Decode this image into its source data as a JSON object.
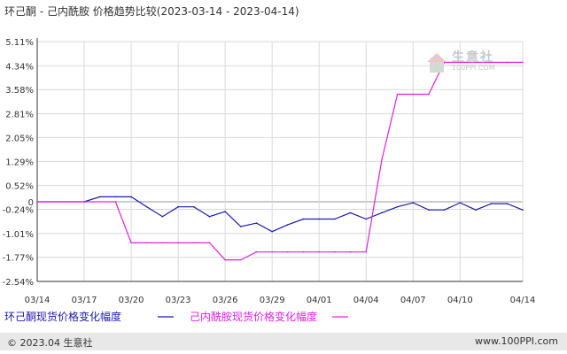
{
  "header": {
    "title": "环己酮 - 己内酰胺 价格趋势比较(2023-03-14 - 2023-04-14)"
  },
  "watermark": {
    "name": "生意社",
    "url": "100PPI.COM"
  },
  "footer": {
    "left": "© 2023.04 生意社",
    "right": "www.100PPI.com"
  },
  "colors": {
    "series1": "#1a1aaa",
    "series2": "#e020e0",
    "grid": "#d9d9d9",
    "axis": "#333333"
  },
  "chart_data": {
    "type": "line",
    "title": "环己酮 - 己内酰胺 价格趋势比较(2023-03-14 - 2023-04-14)",
    "xlabel": "",
    "ylabel": "",
    "ylim": [
      -2.54,
      5.11
    ],
    "yticks": [
      "5.11%",
      "4.34%",
      "3.58%",
      "2.81%",
      "2.05%",
      "1.29%",
      "0.52%",
      "0",
      "-0.24%",
      "-1.01%",
      "-1.77%",
      "-2.54%"
    ],
    "ytick_values": [
      5.11,
      4.34,
      3.58,
      2.81,
      2.05,
      1.29,
      0.52,
      0,
      -0.24,
      -1.01,
      -1.77,
      -2.54
    ],
    "xticks": [
      "03/14",
      "03/17",
      "03/20",
      "03/23",
      "03/26",
      "03/29",
      "04/01",
      "04/04",
      "04/07",
      "04/10",
      "04/14"
    ],
    "xtick_days": [
      0,
      3,
      6,
      9,
      12,
      15,
      18,
      21,
      24,
      27,
      31
    ],
    "grid": true,
    "series": [
      {
        "name": "环己酮现货价格变化幅度",
        "x": [
          0,
          3,
          4,
          5,
          6,
          7,
          8,
          9,
          10,
          11,
          12,
          13,
          14,
          15,
          16,
          17,
          18,
          19,
          20,
          21,
          22,
          23,
          24,
          25,
          26,
          27,
          28,
          29,
          30,
          31
        ],
        "y": [
          0,
          0,
          0.16,
          0.16,
          0.16,
          -0.16,
          -0.47,
          -0.16,
          -0.16,
          -0.47,
          -0.31,
          -0.79,
          -0.68,
          -0.95,
          -0.73,
          -0.55,
          -0.55,
          -0.55,
          -0.35,
          -0.55,
          -0.35,
          -0.16,
          -0.03,
          -0.26,
          -0.26,
          -0.03,
          -0.26,
          -0.06,
          -0.06,
          -0.26
        ]
      },
      {
        "name": "己内酰胺现货价格变化幅度",
        "x": [
          0,
          5,
          6,
          7,
          8,
          9,
          10,
          11,
          12,
          13,
          14,
          15,
          16,
          17,
          18,
          19,
          20,
          21,
          22,
          23,
          24,
          25,
          26,
          27,
          28,
          29,
          30,
          31
        ],
        "y": [
          0,
          0,
          -1.31,
          -1.31,
          -1.31,
          -1.31,
          -1.31,
          -1.31,
          -1.85,
          -1.85,
          -1.6,
          -1.6,
          -1.6,
          -1.6,
          -1.6,
          -1.6,
          -1.6,
          -1.6,
          1.33,
          3.43,
          3.43,
          3.43,
          4.45,
          4.45,
          4.45,
          4.45,
          4.45,
          4.45
        ]
      }
    ],
    "legend_position": "bottom"
  }
}
